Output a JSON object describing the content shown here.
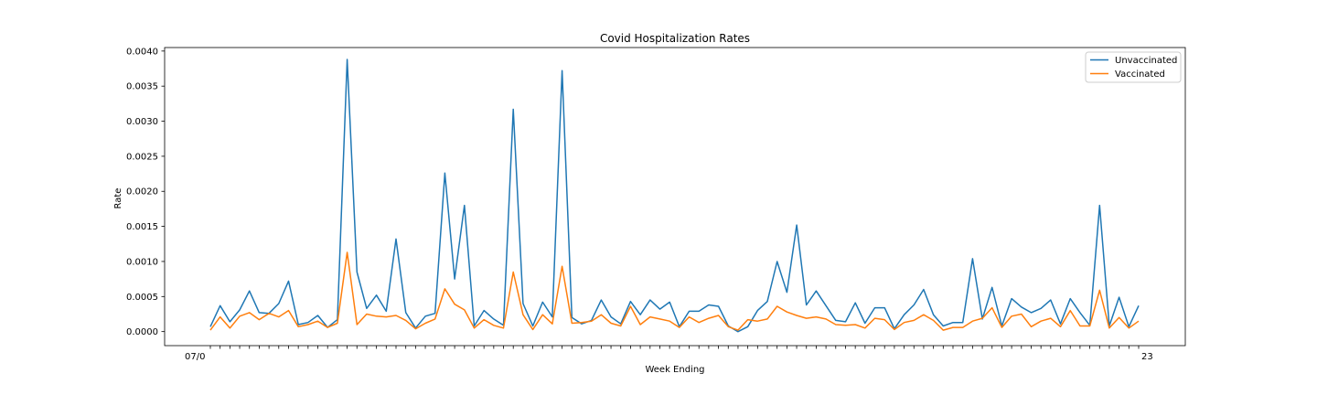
{
  "chart_data": {
    "type": "line",
    "title": "Covid Hospitalization Rates",
    "xlabel": "Week Ending",
    "ylabel": "Rate",
    "ylim": [
      -0.0002,
      0.00405
    ],
    "yticks": [
      "0.0000",
      "0.0005",
      "0.0010",
      "0.0015",
      "0.0020",
      "0.0025",
      "0.0030",
      "0.0035",
      "0.0040"
    ],
    "ytick_values": [
      0,
      0.0005,
      0.001,
      0.0015,
      0.002,
      0.0025,
      0.003,
      0.0035,
      0.004
    ],
    "x_tick_labels_note": "x tick labels are overlapping and illegible except the edge fragments",
    "x_first_label": "07/0",
    "x_last_label": "23",
    "legend_position": "upper right",
    "grid": false,
    "colors": {
      "Unvaccinated": "#1f77b4",
      "Vaccinated": "#ff7f0e"
    },
    "series": [
      {
        "name": "Unvaccinated",
        "values": [
          7e-05,
          0.00037,
          0.00014,
          0.00031,
          0.00058,
          0.00027,
          0.00026,
          0.0004,
          0.00072,
          0.0001,
          0.00013,
          0.00023,
          6e-05,
          0.00017,
          0.00388,
          0.00085,
          0.00033,
          0.00052,
          0.00029,
          0.00132,
          0.00027,
          5e-05,
          0.00022,
          0.00026,
          0.00226,
          0.00075,
          0.0018,
          8e-05,
          0.0003,
          0.00018,
          9e-05,
          0.00317,
          0.0004,
          8e-05,
          0.00042,
          0.00021,
          0.00372,
          0.0002,
          0.00011,
          0.00016,
          0.00045,
          0.00021,
          0.00011,
          0.00043,
          0.00024,
          0.00045,
          0.00032,
          0.00042,
          7e-05,
          0.00029,
          0.00029,
          0.00038,
          0.00036,
          8e-05,
          0.0,
          7e-05,
          0.0003,
          0.00043,
          0.001,
          0.00056,
          0.00152,
          0.00038,
          0.00058,
          0.00037,
          0.00016,
          0.00014,
          0.00041,
          0.00012,
          0.00034,
          0.00034,
          4e-05,
          0.00024,
          0.00038,
          0.0006,
          0.00024,
          8e-05,
          0.00013,
          0.00013,
          0.00104,
          0.00018,
          0.00063,
          8e-05,
          0.00047,
          0.00035,
          0.00027,
          0.00033,
          0.00045,
          0.00011,
          0.00047,
          0.00027,
          9e-05,
          0.0018,
          8e-05,
          0.00049,
          7e-05,
          0.00037
        ]
      },
      {
        "name": "Vaccinated",
        "values": [
          2e-05,
          0.00021,
          5e-05,
          0.00022,
          0.00027,
          0.00017,
          0.00026,
          0.00021,
          0.0003,
          7e-05,
          0.0001,
          0.00015,
          6e-05,
          0.00012,
          0.00113,
          0.0001,
          0.00025,
          0.00022,
          0.00021,
          0.00023,
          0.00016,
          4e-05,
          0.00012,
          0.00018,
          0.00061,
          0.00039,
          0.00031,
          5e-05,
          0.00017,
          9e-05,
          5e-05,
          0.00085,
          0.00024,
          3e-05,
          0.00024,
          0.00011,
          0.00093,
          0.00012,
          0.00013,
          0.00015,
          0.00024,
          0.00012,
          8e-05,
          0.00036,
          0.0001,
          0.00021,
          0.00018,
          0.00015,
          6e-05,
          0.00021,
          0.00013,
          0.00019,
          0.00023,
          7e-05,
          2e-05,
          0.00017,
          0.00015,
          0.00018,
          0.00036,
          0.00028,
          0.00023,
          0.00019,
          0.00021,
          0.00018,
          0.0001,
          9e-05,
          0.0001,
          5e-05,
          0.00019,
          0.00017,
          3e-05,
          0.00013,
          0.00016,
          0.00024,
          0.00016,
          2e-05,
          6e-05,
          6e-05,
          0.00015,
          0.00019,
          0.00034,
          6e-05,
          0.00022,
          0.00025,
          7e-05,
          0.00015,
          0.00019,
          7e-05,
          0.0003,
          8e-05,
          8e-05,
          0.00059,
          5e-05,
          0.0002,
          5e-05,
          0.00015
        ]
      }
    ]
  }
}
